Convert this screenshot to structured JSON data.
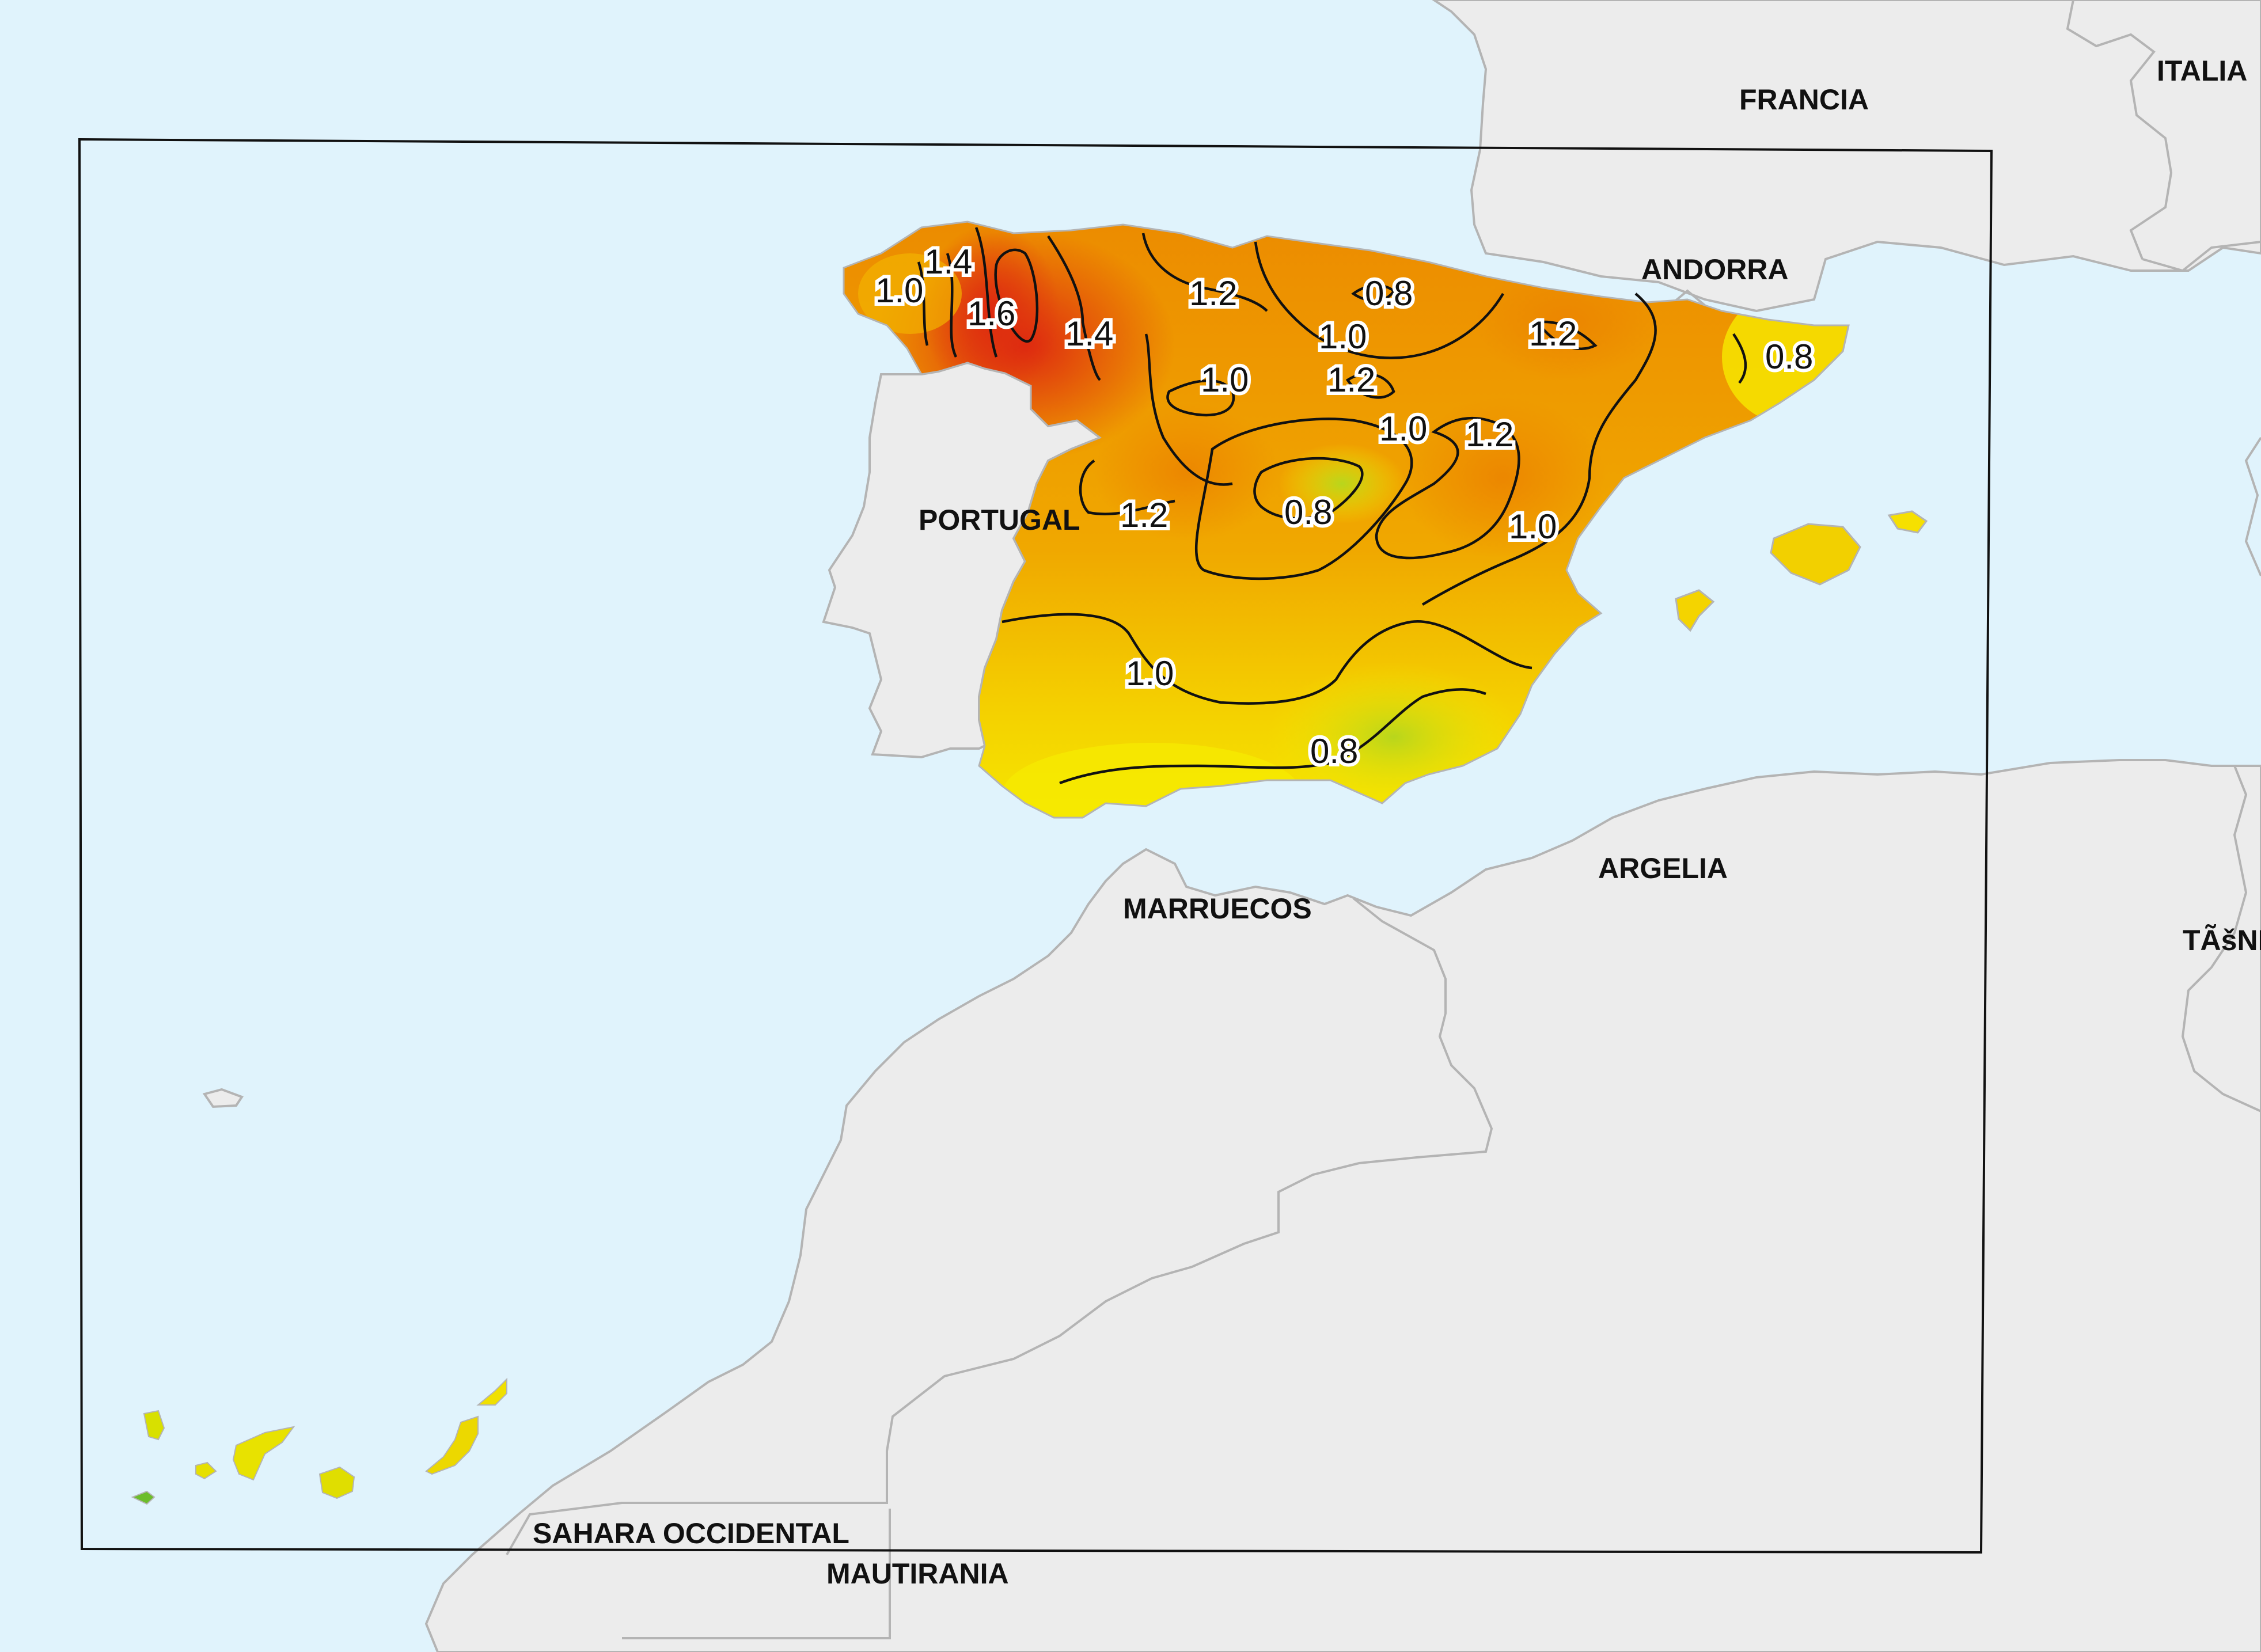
{
  "map": {
    "countries": {
      "francia": "FRANCIA",
      "italia": "ITALIA",
      "andorra": "ANDORRA",
      "portugal": "PORTUGAL",
      "marruecos": "MARRUECOS",
      "argelia": "ARGELIA",
      "tunez": "TÃšNEZ",
      "sahara": "SAHARA OCCIDENTAL",
      "mauritania": "MAUTIRANIA"
    },
    "contour_labels": [
      "1.0",
      "1.4",
      "1.6",
      "1.4",
      "1.2",
      "0.8",
      "1.0",
      "1.2",
      "0.8",
      "1.0",
      "1.2",
      "1.0",
      "1.2",
      "1.2",
      "0.8",
      "1.0",
      "1.0",
      "0.8"
    ],
    "colors": {
      "sea": "#e0f3fc",
      "land": "#ececec",
      "low": "#9ccf1e",
      "mid_low": "#f6ea00",
      "mid": "#f2b200",
      "mid_high": "#ec8400",
      "high": "#de2a10"
    }
  }
}
